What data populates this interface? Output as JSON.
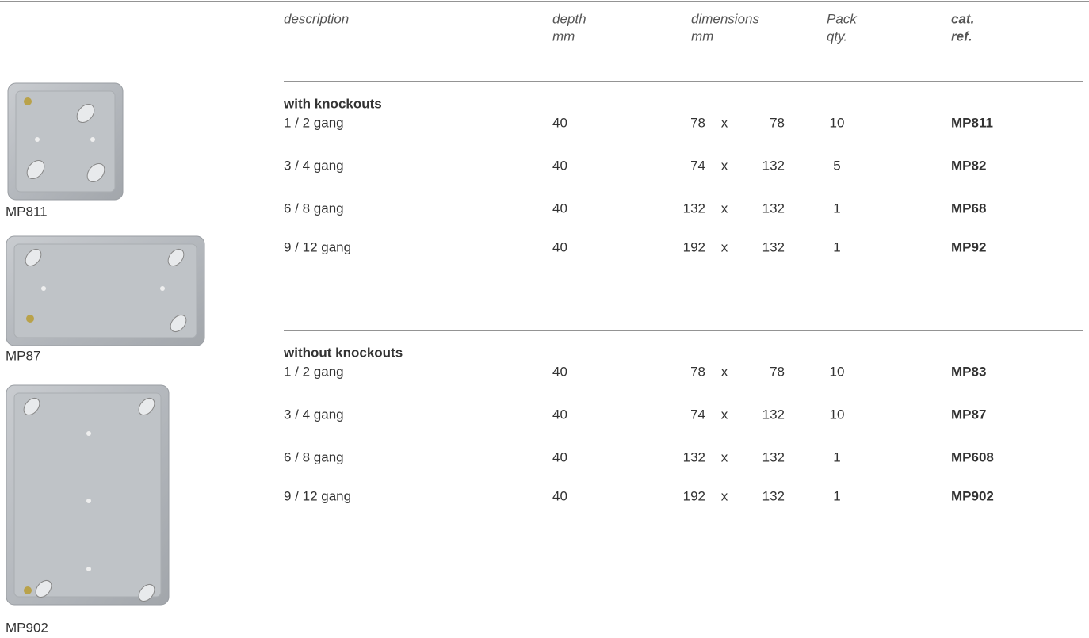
{
  "header": {
    "columns": [
      [
        "description"
      ],
      [
        "depth",
        "mm"
      ],
      [
        "dimensions",
        "mm"
      ],
      [
        "Pack",
        "qty."
      ],
      [
        "cat.",
        "ref."
      ]
    ]
  },
  "dimension_separator": "x",
  "sections": [
    {
      "title": "with knockouts",
      "rows": [
        {
          "description": "1 / 2 gang",
          "depth": 40,
          "width": 78,
          "height": 78,
          "qty": 10,
          "ref": "MP811"
        },
        {
          "description": "3 / 4 gang",
          "depth": 40,
          "width": 74,
          "height": 132,
          "qty": 5,
          "ref": "MP82"
        },
        {
          "description": "6 / 8 gang",
          "depth": 40,
          "width": 132,
          "height": 132,
          "qty": 1,
          "ref": "MP68"
        },
        {
          "description": "9 / 12 gang",
          "depth": 40,
          "width": 192,
          "height": 132,
          "qty": 1,
          "ref": "MP92"
        }
      ]
    },
    {
      "title": "without knockouts",
      "rows": [
        {
          "description": "1 / 2 gang",
          "depth": 40,
          "width": 78,
          "height": 78,
          "qty": 10,
          "ref": "MP83"
        },
        {
          "description": "3 / 4 gang",
          "depth": 40,
          "width": 74,
          "height": 132,
          "qty": 10,
          "ref": "MP87"
        },
        {
          "description": "6 / 8 gang",
          "depth": 40,
          "width": 132,
          "height": 132,
          "qty": 1,
          "ref": "MP608"
        },
        {
          "description": "9 / 12 gang",
          "depth": 40,
          "width": 192,
          "height": 132,
          "qty": 1,
          "ref": "MP902"
        }
      ]
    }
  ],
  "images": [
    {
      "label": "MP811"
    },
    {
      "label": "MP87"
    },
    {
      "label": "MP902"
    }
  ]
}
